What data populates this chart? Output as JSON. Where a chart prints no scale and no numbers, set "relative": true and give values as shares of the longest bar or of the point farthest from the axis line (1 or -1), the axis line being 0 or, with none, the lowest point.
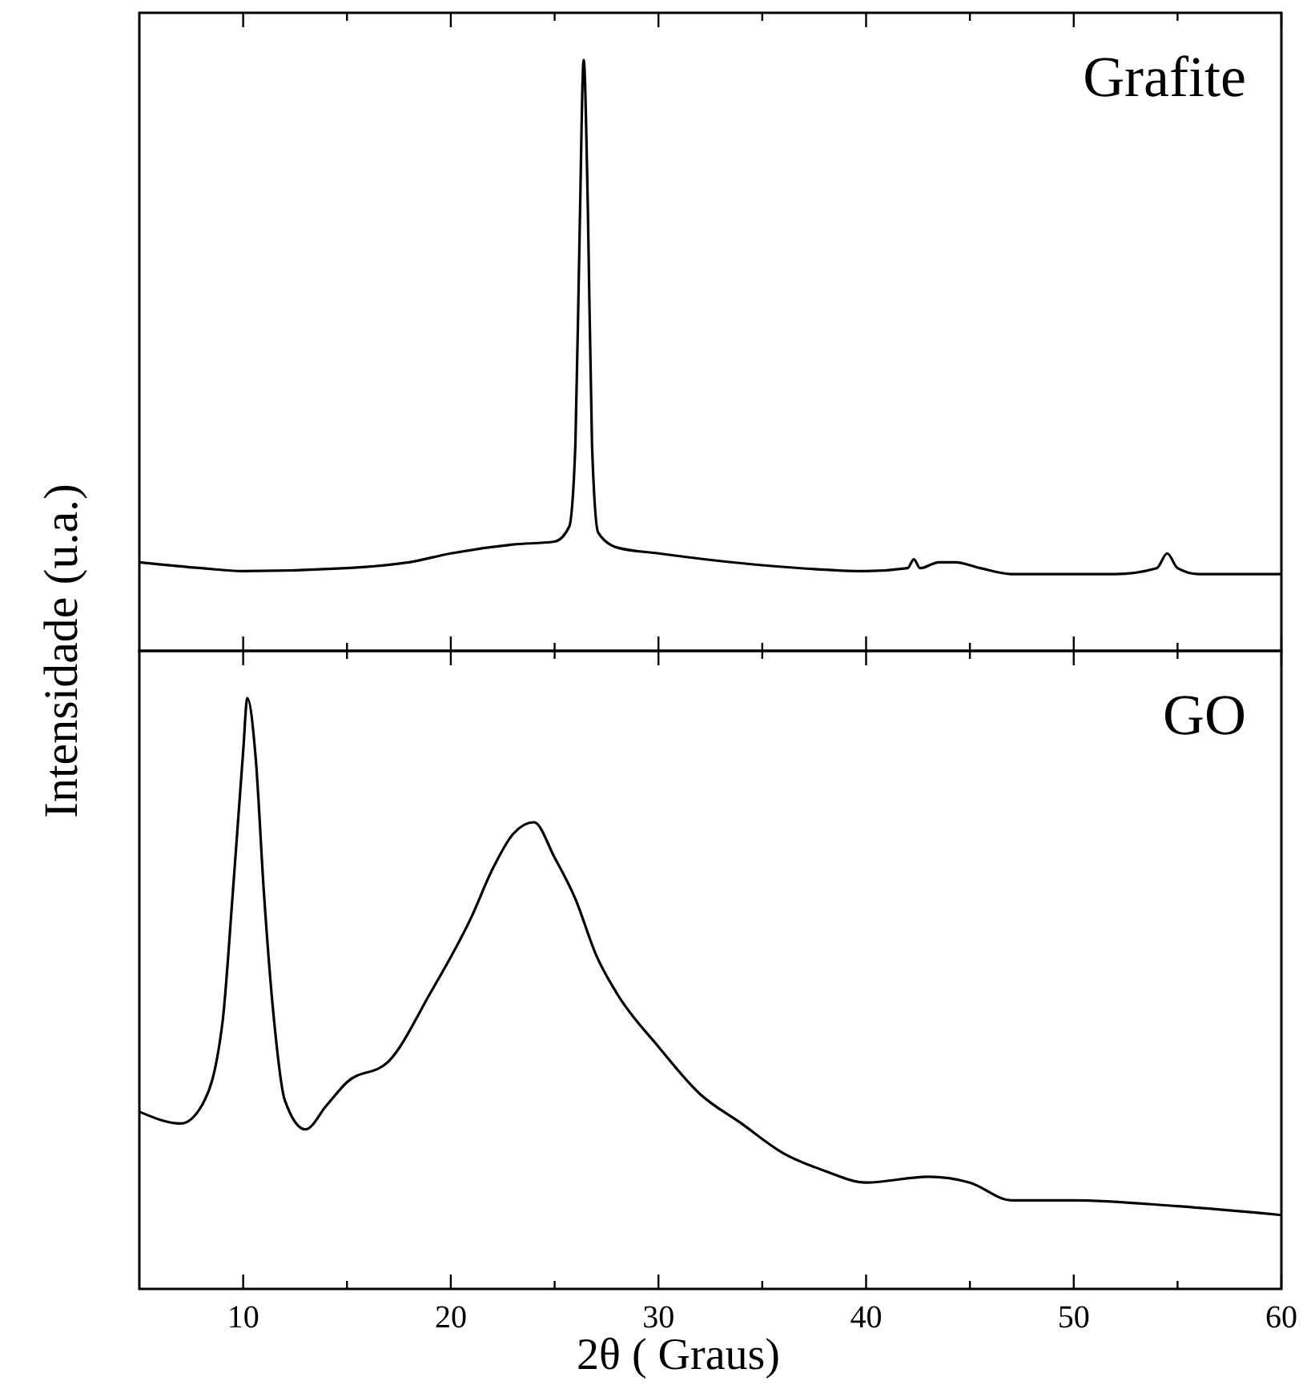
{
  "chart_data": [
    {
      "type": "line",
      "relative": true,
      "ylabel": "Intensidade (u.a.)",
      "annotations": [
        "Grafite"
      ],
      "xlim": [
        5,
        60
      ],
      "xticks": [
        10,
        {
          "value": 15,
          "label": null
        },
        20,
        {
          "value": 25,
          "label": null
        },
        30,
        {
          "value": 35,
          "label": null
        },
        40,
        {
          "value": 45,
          "label": null
        },
        50,
        {
          "value": 55,
          "label": null
        },
        60
      ],
      "tick_labels": false,
      "grid": false,
      "series": [
        {
          "color": "#000000",
          "x": [
            5,
            8,
            10,
            15,
            18,
            20,
            23,
            25,
            25.7,
            26.0,
            26.2,
            26.4,
            26.6,
            26.8,
            27.1,
            28,
            30,
            35,
            40,
            42,
            42.3,
            42.6,
            43.5,
            44.3,
            45.5,
            47,
            52,
            54,
            54.5,
            55,
            56,
            60
          ],
          "values": [
            0.15,
            0.14,
            0.135,
            0.14,
            0.15,
            0.165,
            0.18,
            0.185,
            0.21,
            0.35,
            0.7,
            1.0,
            0.75,
            0.35,
            0.2,
            0.175,
            0.165,
            0.145,
            0.135,
            0.14,
            0.155,
            0.14,
            0.15,
            0.15,
            0.14,
            0.13,
            0.13,
            0.14,
            0.165,
            0.14,
            0.13,
            0.13
          ]
        }
      ]
    },
    {
      "type": "line",
      "relative": true,
      "xlabel": "2θ ( Graus)",
      "annotations": [
        "GO"
      ],
      "xlim": [
        5,
        60
      ],
      "xticks": [
        10,
        {
          "value": 15,
          "label": null
        },
        20,
        {
          "value": 25,
          "label": null
        },
        30,
        {
          "value": 35,
          "label": null
        },
        40,
        {
          "value": 45,
          "label": null
        },
        50,
        {
          "value": 55,
          "label": null
        },
        60
      ],
      "tick_labels": "x",
      "grid": false,
      "series": [
        {
          "color": "#000000",
          "x": [
            5,
            7,
            8,
            9,
            9.5,
            10,
            10.2,
            10.6,
            11,
            11.5,
            12,
            13,
            14,
            15,
            17,
            19,
            21,
            22,
            23,
            24,
            25,
            26,
            27,
            28,
            30,
            32,
            34,
            36,
            38,
            40,
            43,
            45,
            47,
            50,
            55,
            60
          ],
          "values": [
            0.3,
            0.28,
            0.31,
            0.45,
            0.67,
            0.91,
            1.0,
            0.9,
            0.67,
            0.45,
            0.32,
            0.27,
            0.31,
            0.35,
            0.385,
            0.5,
            0.63,
            0.71,
            0.77,
            0.79,
            0.73,
            0.66,
            0.565,
            0.5,
            0.41,
            0.33,
            0.28,
            0.23,
            0.2,
            0.18,
            0.19,
            0.18,
            0.15,
            0.15,
            0.14,
            0.125
          ]
        }
      ]
    }
  ]
}
